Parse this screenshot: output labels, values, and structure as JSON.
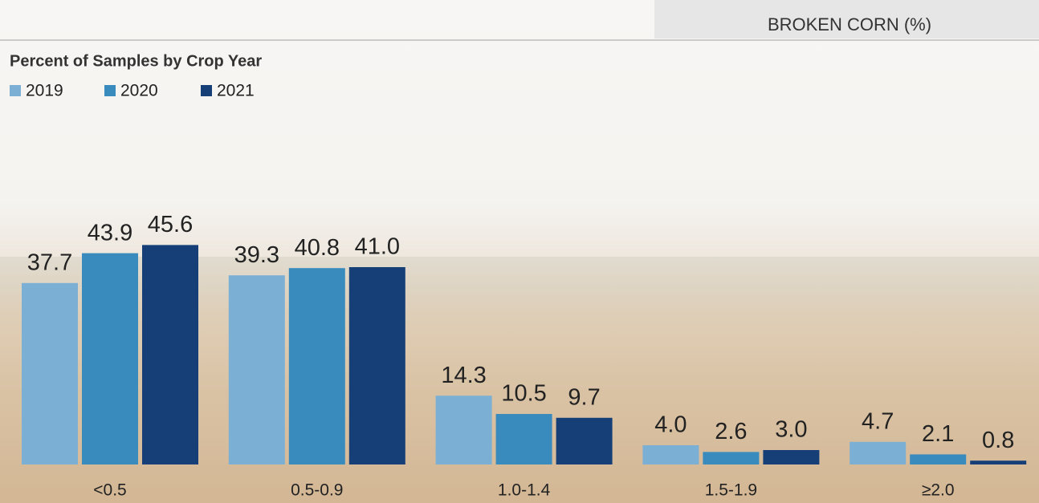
{
  "chart_data": {
    "type": "bar",
    "header": "BROKEN CORN (%)",
    "title": "Percent of Samples by Crop Year",
    "categories": [
      "<0.5",
      "0.5-0.9",
      "1.0-1.4",
      "1.5-1.9",
      "≥2.0"
    ],
    "series": [
      {
        "name": "2019",
        "color": "#7bafd4",
        "values": [
          37.7,
          39.3,
          14.3,
          4.0,
          4.7
        ],
        "value_labels": [
          "37.7",
          "39.3",
          "14.3",
          "4.0",
          "4.7"
        ]
      },
      {
        "name": "2020",
        "color": "#3a8bbd",
        "values": [
          43.9,
          40.8,
          10.5,
          2.6,
          2.1
        ],
        "value_labels": [
          "43.9",
          "40.8",
          "10.5",
          "2.6",
          "2.1"
        ]
      },
      {
        "name": "2021",
        "color": "#163f78",
        "values": [
          45.6,
          41.0,
          9.7,
          3.0,
          0.8
        ],
        "value_labels": [
          "45.6",
          "41.0",
          "9.7",
          "3.0",
          "0.8"
        ]
      }
    ]
  }
}
